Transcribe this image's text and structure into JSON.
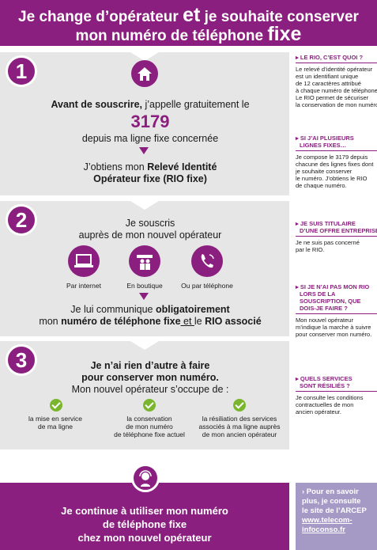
{
  "header": {
    "line1_a": "Je change d’opérateur ",
    "line1_et": "et",
    "line1_b": " je souhaite conserver",
    "line2_a": "mon numéro de téléphone ",
    "line2_fixe": "fixe"
  },
  "step1": {
    "number": "1",
    "icon": "house-icon",
    "bold": "Avant de souscrire,",
    "rest": " j’appelle gratuitement le",
    "phone": "3179",
    "line2": "depuis ma ligne fixe concernée",
    "get_a": "J’obtiens mon ",
    "get_b": "Relevé Identité",
    "get_c": "Opérateur fixe (RIO fixe)"
  },
  "step2": {
    "number": "2",
    "line1": "Je souscris",
    "line2": "auprès de mon nouvel opérateur",
    "channels": [
      {
        "icon": "laptop-icon",
        "label": "Par internet"
      },
      {
        "icon": "shop-icon",
        "label": "En boutique"
      },
      {
        "icon": "phone-icon",
        "label": "Ou par téléphone"
      }
    ],
    "com_a": "Je lui communique ",
    "com_b": "obligatoirement",
    "com_c": "mon ",
    "com_d": "numéro de téléphone fixe",
    "com_e": " et ",
    "com_f": "le ",
    "com_g": "RIO associé"
  },
  "step3": {
    "number": "3",
    "bold1": "Je n’ai rien d’autre à faire",
    "bold2": "pour conserver mon numéro.",
    "line3": "Mon nouvel opérateur s’occupe de :",
    "items": [
      {
        "l1": "la mise en service",
        "l2": "de ma ligne",
        "l3": ""
      },
      {
        "l1": "la conservation",
        "l2": "de mon numéro",
        "l3": "de téléphone fixe actuel"
      },
      {
        "l1": "la résiliation des services",
        "l2": "associés à ma ligne auprès",
        "l3": "de mon ancien opérateur"
      }
    ]
  },
  "sidebar": [
    {
      "q1": "Le RIO, c’est quoi ?",
      "q2": "",
      "a": [
        "Le relevé d’identité opérateur",
        "est un identifiant unique",
        "de 12 caractères attribué",
        "à chaque numéro de téléphone.",
        "Le RIO permet de sécuriser",
        "la conservation de mon numéro."
      ]
    },
    {
      "q1": "Si j’ai plusieurs",
      "q2": "lignes fixes…",
      "a": [
        "Je compose le 3179 depuis",
        "chacune des lignes fixes dont",
        "je souhaite conserver",
        "le numéro. J’obtiens le RIO",
        "de chaque numéro."
      ]
    },
    {
      "q1": "Je suis titulaire",
      "q2": "d’une offre entreprise",
      "a": [
        "Je ne suis pas concerné",
        "par le RIO."
      ]
    },
    {
      "q1": "Si je n’ai pas mon RIO",
      "q2": "lors de la souscription, que dois-je faire ?",
      "a": [
        "Mon nouvel opérateur",
        "m’indique la marche à suivre",
        "pour conserver mon numéro."
      ]
    },
    {
      "q1": "Quels services",
      "q2": "sont résiliés ?",
      "a": [
        "Je consulte les conditions",
        "contractuelles de mon",
        "ancien opérateur."
      ]
    }
  ],
  "footer": {
    "icon": "person-headset-icon",
    "l1": "Je continue à utiliser mon numéro",
    "l2": "de téléphone fixe",
    "l3": "chez mon nouvel opérateur"
  },
  "footer_side": {
    "l1": "› Pour en savoir",
    "l2": "plus, je consulte",
    "l3": "le site de l’ARCEP",
    "l4": "www.telecom-",
    "l5": "infoconso.fr"
  }
}
